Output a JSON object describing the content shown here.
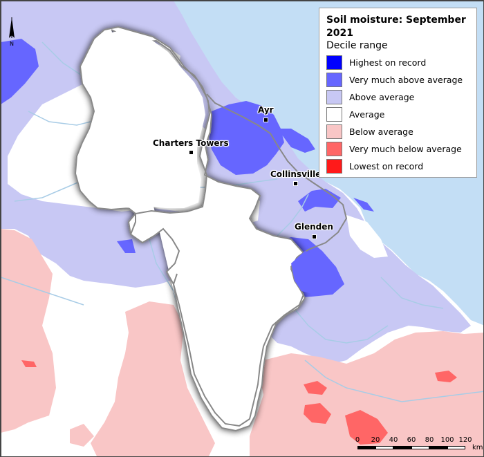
{
  "legend": {
    "title": "Soil moisture: September 2021",
    "subtitle": "Decile range",
    "items": [
      {
        "label": "Highest on record",
        "color": "#0000ff"
      },
      {
        "label": "Very much above average",
        "color": "#6666ff"
      },
      {
        "label": "Above average",
        "color": "#c8c8f4"
      },
      {
        "label": "Average",
        "color": "#ffffff"
      },
      {
        "label": "Below average",
        "color": "#f9c6c6"
      },
      {
        "label": "Very much below average",
        "color": "#ff6666"
      },
      {
        "label": "Lowest on record",
        "color": "#ff1a1a"
      }
    ]
  },
  "towns": [
    {
      "name": "Ayr"
    },
    {
      "name": "Charters Towers"
    },
    {
      "name": "Collinsville"
    },
    {
      "name": "Glenden"
    }
  ],
  "scale_bar": {
    "ticks": [
      "0",
      "20",
      "40",
      "60",
      "80",
      "100",
      "120"
    ],
    "unit": "km"
  },
  "north_arrow": {
    "label": "N"
  },
  "colors": {
    "ocean": "#c3def5",
    "river": "#a8cce6",
    "boundary": "#888888"
  }
}
